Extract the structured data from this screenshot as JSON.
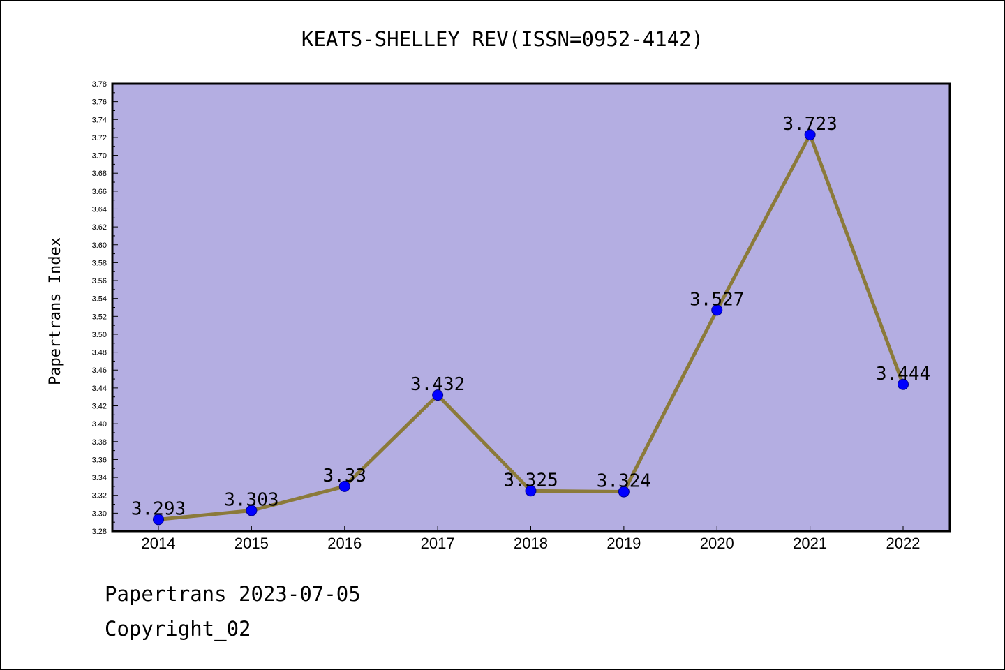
{
  "chart_data": {
    "type": "line",
    "title": "KEATS-SHELLEY REV(ISSN=0952-4142)",
    "xlabel": "",
    "ylabel": "Papertrans Index",
    "categories": [
      "2014",
      "2015",
      "2016",
      "2017",
      "2018",
      "2019",
      "2020",
      "2021",
      "2022"
    ],
    "series": [
      {
        "values": [
          3.293,
          3.303,
          3.33,
          3.432,
          3.325,
          3.324,
          3.527,
          3.723,
          3.444
        ],
        "labels": [
          "3.293",
          "3.303",
          "3.33",
          "3.432",
          "3.325",
          "3.324",
          "3.527",
          "3.723",
          "3.444"
        ]
      }
    ],
    "ylim": [
      3.28,
      3.78
    ],
    "ytick_step": 0.02,
    "grid": false,
    "legend": "none",
    "colors": {
      "plot_background": "#b4aee2",
      "line": "#8b7a3a",
      "marker": "#0000ff",
      "axis": "#000000"
    }
  },
  "footer": {
    "date_line": "Papertrans 2023-07-05",
    "copyright": "Copyright_02"
  }
}
